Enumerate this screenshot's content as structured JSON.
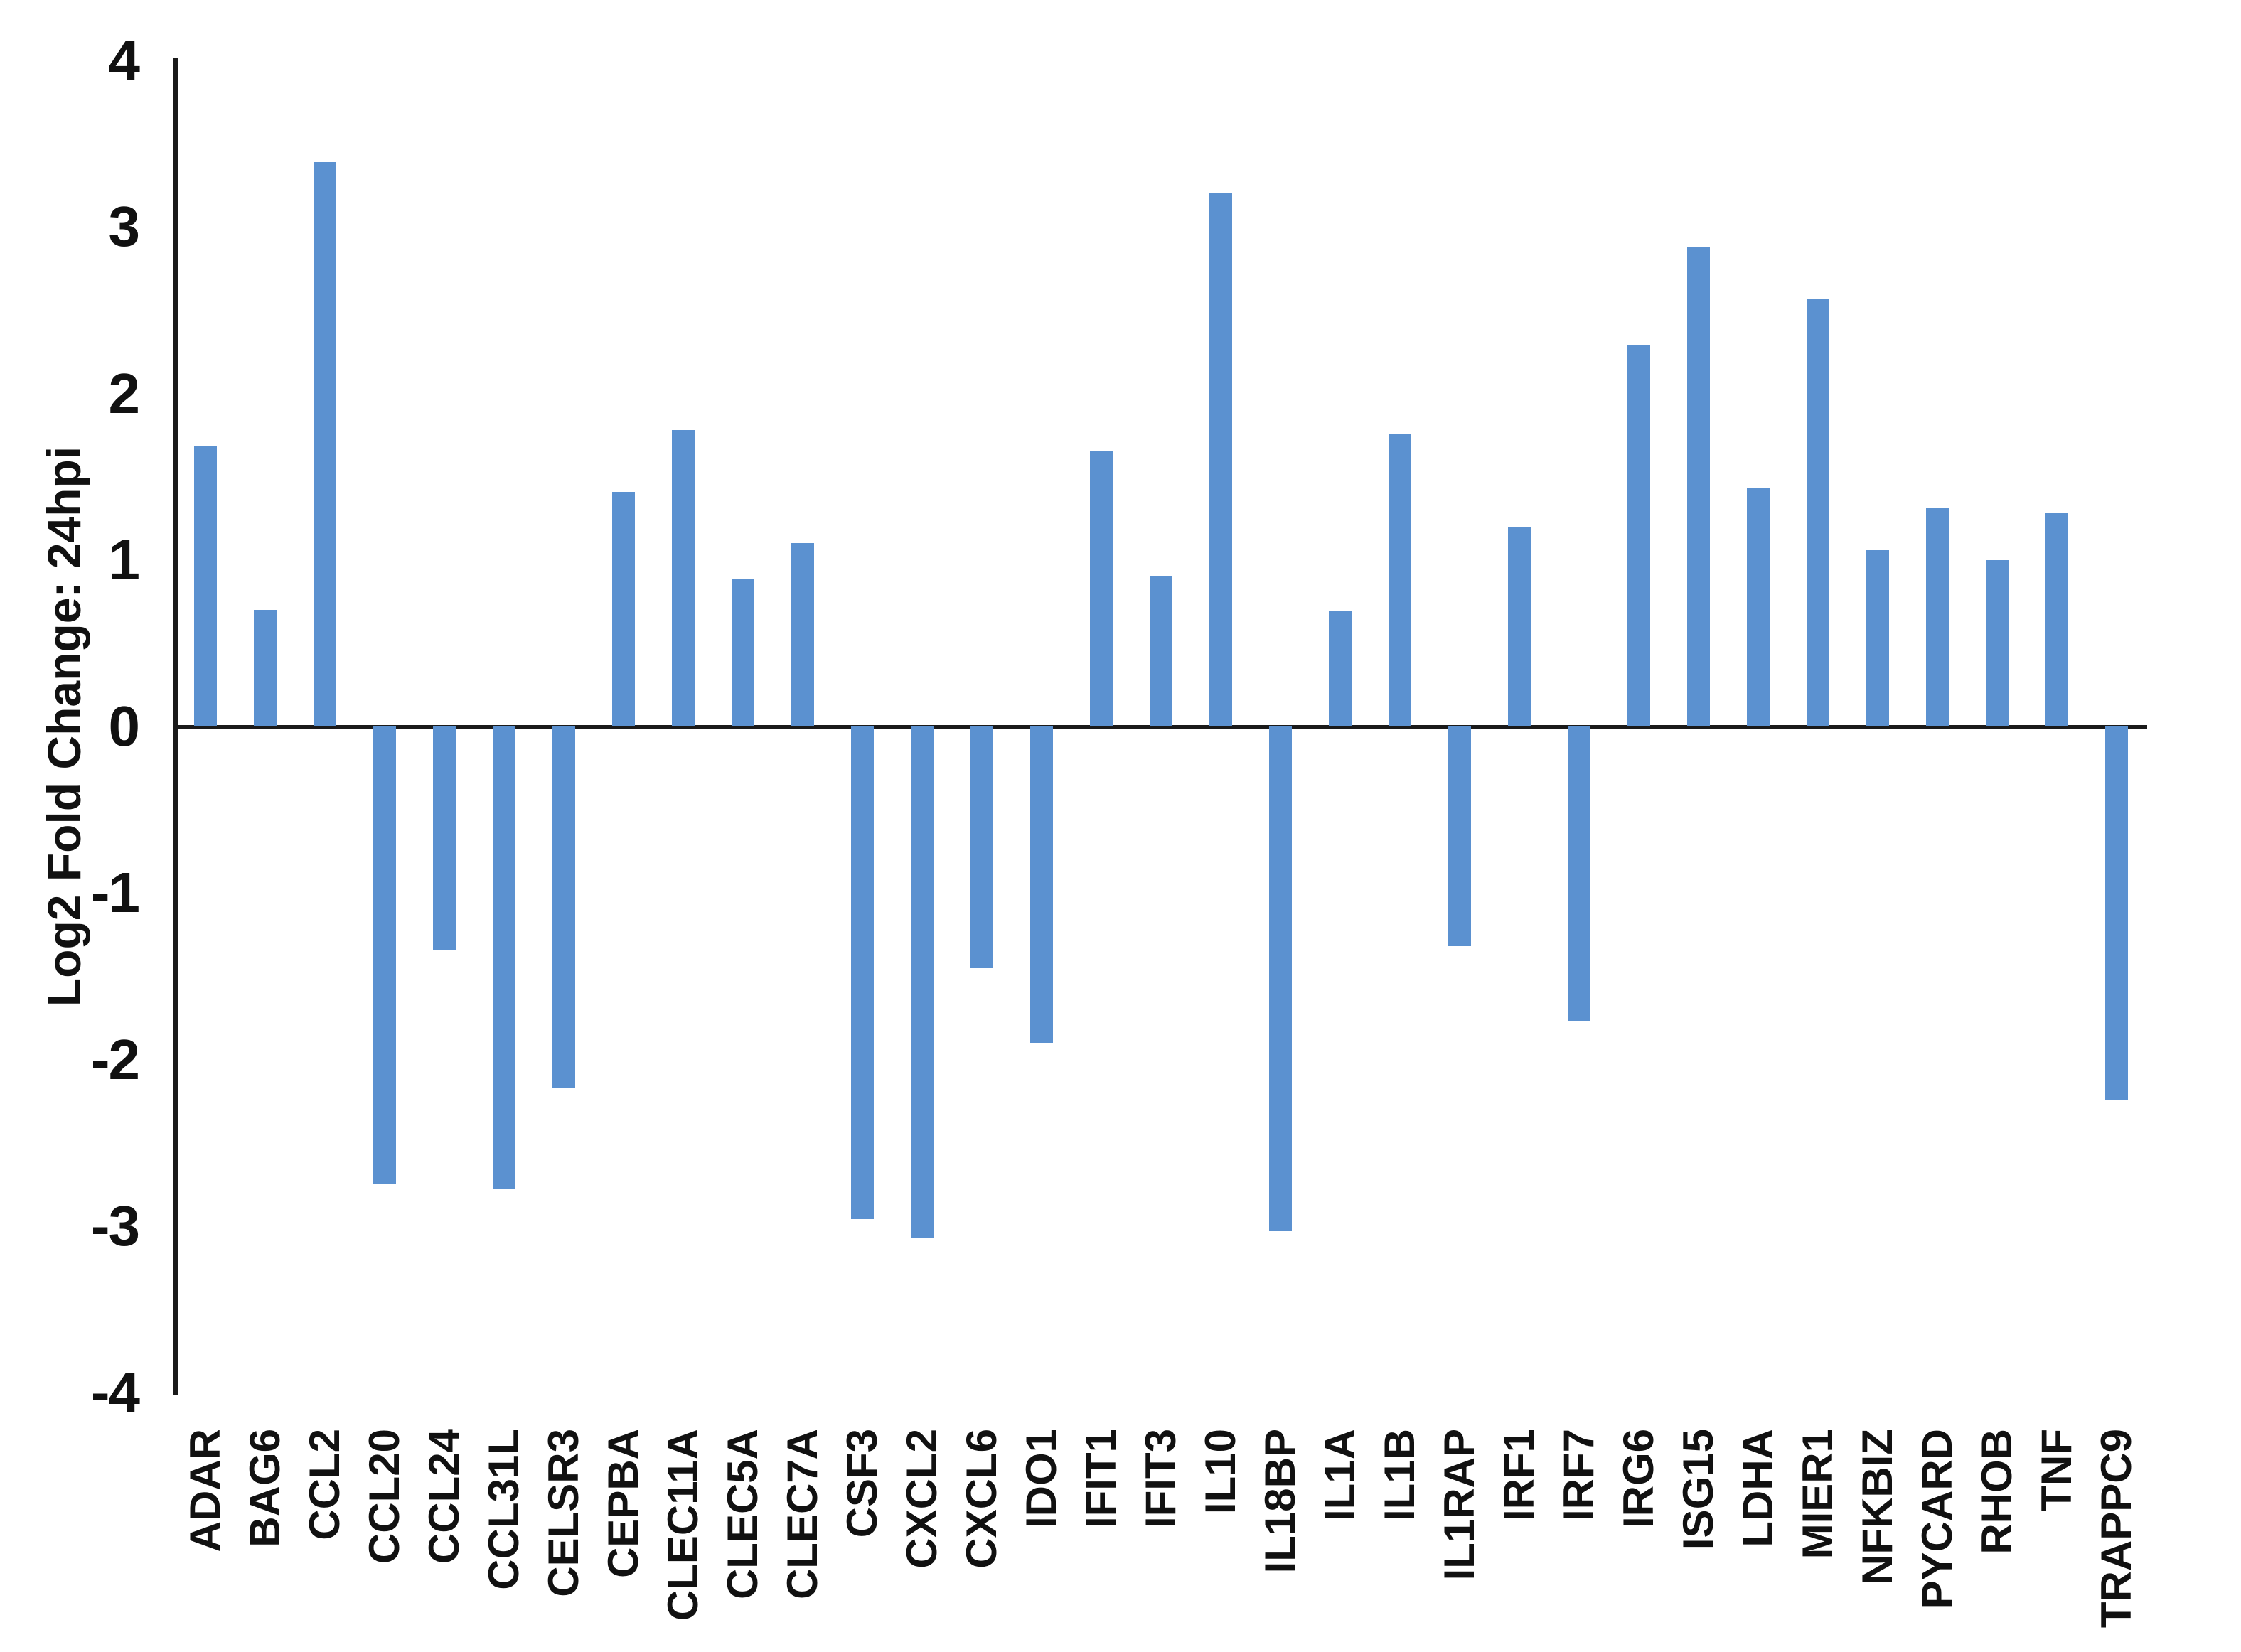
{
  "chart_data": {
    "type": "bar",
    "title": "",
    "xlabel": "",
    "ylabel": "Log2 Fold Change: 24hpi",
    "ylim": [
      -4,
      4
    ],
    "y_ticks": [
      4,
      3,
      2,
      1,
      0,
      -1,
      -2,
      -3,
      -4
    ],
    "grid": false,
    "legend": null,
    "bar_color": "#5b91d0",
    "axis_color": "#1a1a1a",
    "categories": [
      "ADAR",
      "BAG6",
      "CCL2",
      "CCL20",
      "CCL24",
      "CCL31L",
      "CELSR3",
      "CEPBA",
      "CLEC11A",
      "CLEC5A",
      "CLEC7A",
      "CSF3",
      "CXCL2",
      "CXCL6",
      "IDO1",
      "IFIT1",
      "IFIT3",
      "IL10",
      "IL18BP",
      "IL1A",
      "IL1B",
      "IL1RAP",
      "IRF1",
      "IRF7",
      "IRG6",
      "ISG15",
      "LDHA",
      "MIER1",
      "NFKBIZ",
      "PYCARD",
      "RHOB",
      "TNF",
      "TRAPPC9"
    ],
    "values": [
      1.68,
      0.7,
      3.39,
      -2.75,
      -1.34,
      -2.78,
      -2.17,
      1.41,
      1.78,
      0.89,
      1.1,
      -2.96,
      -3.07,
      -1.45,
      -1.9,
      1.65,
      0.9,
      3.2,
      -3.03,
      0.69,
      1.76,
      -1.32,
      1.2,
      -1.77,
      2.29,
      2.88,
      1.43,
      2.57,
      1.06,
      1.31,
      1.0,
      1.28,
      -2.24
    ]
  }
}
